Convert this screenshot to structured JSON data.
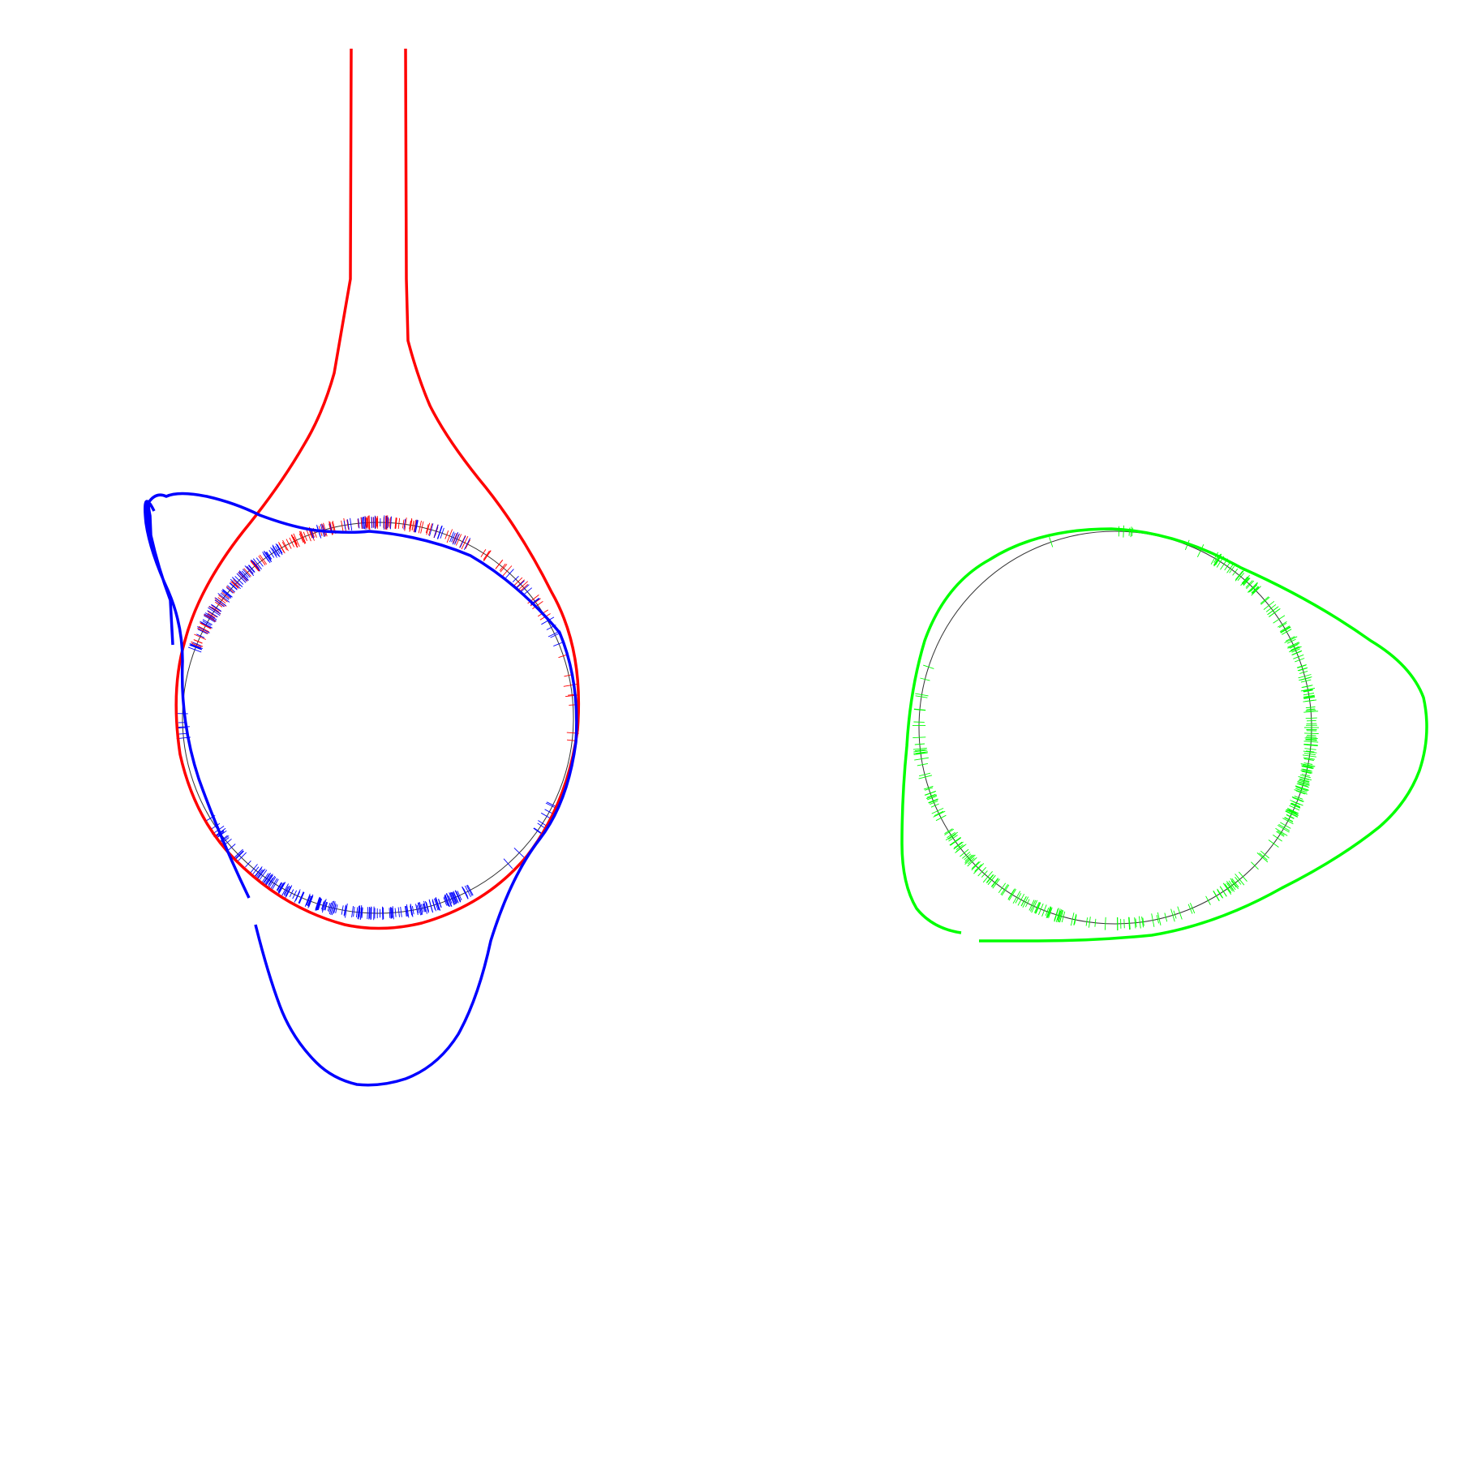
{
  "colors": {
    "background": "#ffffff",
    "red": "#ff0000",
    "blue": "#0000ff",
    "green": "#00ff00",
    "reference": "#333333"
  },
  "panels": [
    {
      "name": "left-panel",
      "circle_color": "reference",
      "curves": [
        "red",
        "blue"
      ],
      "ticks": [
        "red",
        "blue"
      ]
    },
    {
      "name": "right-panel",
      "circle_color": "reference",
      "curves": [
        "green"
      ],
      "ticks": [
        "green"
      ]
    }
  ]
}
